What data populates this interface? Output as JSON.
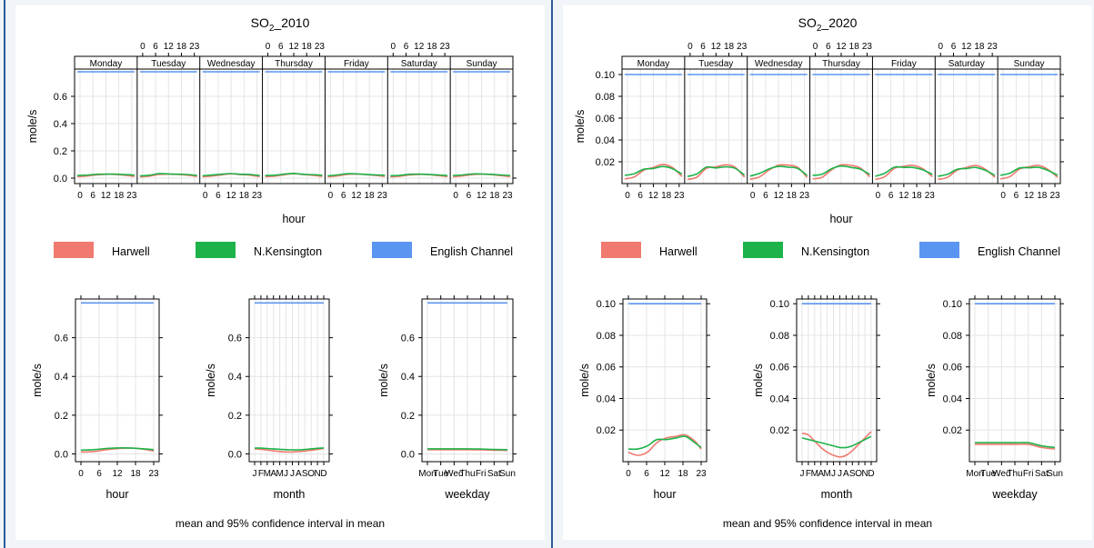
{
  "colors": {
    "Harwell": "#f07a70",
    "N.Kensington": "#1eb34a",
    "English Channel": "#5b95f2",
    "grid": "#e4e4e4",
    "divider": "#2a5c9a",
    "background": "#f1f4f8"
  },
  "legend": [
    "Harwell",
    "N.Kensington",
    "English Channel"
  ],
  "footer_text": "mean and 95% confidence interval in mean",
  "weekday_strip_labels": [
    "Monday",
    "Tuesday",
    "Wednesday",
    "Thursday",
    "Friday",
    "Saturday",
    "Sunday"
  ],
  "hour_tick_labels": [
    "0",
    "6",
    "12",
    "18",
    "23"
  ],
  "month_tick_labels": [
    "J",
    "F",
    "M",
    "A",
    "M",
    "J",
    "J",
    "A",
    "S",
    "O",
    "N",
    "D"
  ],
  "weekday_tick_labels": [
    "Mon",
    "Tue",
    "Wed",
    "Thu",
    "Fri",
    "Sat",
    "Sun"
  ],
  "chart_data": [
    {
      "id": "so2_2010",
      "title_base": "SO",
      "title_sub": "2",
      "title_rest": "_2010",
      "ylabel": "mole/s",
      "ylim": [
        -0.04,
        0.8
      ],
      "yticks": [
        "0.0",
        "0.2",
        "0.4",
        "0.6"
      ],
      "bottom_yticks": [
        "0.0",
        "0.2",
        "0.4",
        "0.6"
      ],
      "grid": true,
      "weekly_series": [
        {
          "name": "Harwell",
          "pattern": [
            0.01,
            0.015,
            0.025,
            0.03,
            0.028,
            0.02,
            0.012
          ]
        },
        {
          "name": "N.Kensington",
          "pattern": [
            0.018,
            0.022,
            0.03,
            0.032,
            0.03,
            0.025,
            0.02
          ]
        },
        {
          "name": "English Channel",
          "pattern": [
            0.78,
            0.78,
            0.78,
            0.78,
            0.78,
            0.78,
            0.78
          ]
        }
      ],
      "hour": {
        "xlabel": "hour",
        "x": [
          0,
          4,
          8,
          12,
          16,
          20,
          23
        ],
        "series": [
          {
            "name": "Harwell",
            "values": [
              0.01,
              0.012,
              0.022,
              0.028,
              0.03,
              0.024,
              0.015
            ]
          },
          {
            "name": "N.Kensington",
            "values": [
              0.02,
              0.022,
              0.028,
              0.031,
              0.03,
              0.026,
              0.022
            ]
          },
          {
            "name": "English Channel",
            "values": [
              0.78,
              0.78,
              0.78,
              0.78,
              0.78,
              0.78,
              0.78
            ]
          }
        ]
      },
      "month": {
        "xlabel": "month",
        "x": [
          1,
          2,
          3,
          4,
          5,
          6,
          7,
          8,
          9,
          10,
          11,
          12
        ],
        "series": [
          {
            "name": "Harwell",
            "values": [
              0.026,
              0.024,
              0.02,
              0.016,
              0.012,
              0.01,
              0.01,
              0.012,
              0.015,
              0.019,
              0.024,
              0.028
            ]
          },
          {
            "name": "N.Kensington",
            "values": [
              0.03,
              0.03,
              0.028,
              0.026,
              0.024,
              0.022,
              0.021,
              0.021,
              0.023,
              0.026,
              0.029,
              0.031
            ]
          },
          {
            "name": "English Channel",
            "values": [
              0.78,
              0.78,
              0.78,
              0.78,
              0.78,
              0.78,
              0.78,
              0.78,
              0.78,
              0.78,
              0.78,
              0.78
            ]
          }
        ]
      },
      "weekday": {
        "xlabel": "weekday",
        "x": [
          1,
          2,
          3,
          4,
          5,
          6,
          7
        ],
        "series": [
          {
            "name": "Harwell",
            "values": [
              0.022,
              0.022,
              0.022,
              0.022,
              0.021,
              0.019,
              0.018
            ]
          },
          {
            "name": "N.Kensington",
            "values": [
              0.026,
              0.026,
              0.026,
              0.026,
              0.025,
              0.023,
              0.022
            ]
          },
          {
            "name": "English Channel",
            "values": [
              0.78,
              0.78,
              0.78,
              0.78,
              0.78,
              0.78,
              0.78
            ]
          }
        ]
      }
    },
    {
      "id": "so2_2020",
      "title_base": "SO",
      "title_sub": "2",
      "title_rest": "_2020",
      "ylabel": "mole/s",
      "ylim": [
        0.0,
        0.105
      ],
      "yticks": [
        "0.02",
        "0.04",
        "0.06",
        "0.08",
        "0.10"
      ],
      "bottom_yticks": [
        "0.02",
        "0.04",
        "0.06",
        "0.08",
        "0.10"
      ],
      "bottom_ylim": [
        0.0,
        0.103
      ],
      "grid": true,
      "weekly_series": [
        {
          "name": "Harwell",
          "pattern": [
            0.004,
            0.006,
            0.013,
            0.016,
            0.018,
            0.014,
            0.006
          ]
        },
        {
          "name": "N.Kensington",
          "pattern": [
            0.007,
            0.009,
            0.014,
            0.015,
            0.016,
            0.013,
            0.008
          ]
        },
        {
          "name": "English Channel",
          "pattern": [
            0.1,
            0.1,
            0.1,
            0.1,
            0.1,
            0.1,
            0.1
          ]
        }
      ],
      "hour": {
        "xlabel": "hour",
        "x": [
          0,
          3,
          6,
          9,
          12,
          15,
          18,
          21,
          23
        ],
        "series": [
          {
            "name": "Harwell",
            "values": [
              0.006,
              0.004,
              0.006,
              0.012,
              0.015,
              0.016,
              0.017,
              0.013,
              0.008
            ]
          },
          {
            "name": "N.Kensington",
            "values": [
              0.008,
              0.008,
              0.01,
              0.014,
              0.014,
              0.015,
              0.016,
              0.012,
              0.009
            ]
          },
          {
            "name": "English Channel",
            "values": [
              0.1,
              0.1,
              0.1,
              0.1,
              0.1,
              0.1,
              0.1,
              0.1,
              0.1
            ]
          }
        ]
      },
      "month": {
        "xlabel": "month",
        "x": [
          1,
          2,
          3,
          4,
          5,
          6,
          7,
          8,
          9,
          10,
          11,
          12
        ],
        "series": [
          {
            "name": "Harwell",
            "values": [
              0.018,
              0.017,
              0.013,
              0.009,
              0.006,
              0.004,
              0.003,
              0.004,
              0.007,
              0.011,
              0.015,
              0.019
            ]
          },
          {
            "name": "N.Kensington",
            "values": [
              0.015,
              0.014,
              0.013,
              0.012,
              0.011,
              0.01,
              0.009,
              0.009,
              0.01,
              0.012,
              0.014,
              0.016
            ]
          },
          {
            "name": "English Channel",
            "values": [
              0.1,
              0.1,
              0.1,
              0.1,
              0.1,
              0.1,
              0.1,
              0.1,
              0.1,
              0.1,
              0.1,
              0.1
            ]
          }
        ]
      },
      "weekday": {
        "xlabel": "weekday",
        "x": [
          1,
          2,
          3,
          4,
          5,
          6,
          7
        ],
        "series": [
          {
            "name": "Harwell",
            "values": [
              0.011,
              0.011,
              0.011,
              0.011,
              0.011,
              0.009,
              0.008
            ]
          },
          {
            "name": "N.Kensington",
            "values": [
              0.012,
              0.012,
              0.012,
              0.012,
              0.012,
              0.01,
              0.009
            ]
          },
          {
            "name": "English Channel",
            "values": [
              0.1,
              0.1,
              0.1,
              0.1,
              0.1,
              0.1,
              0.1
            ]
          }
        ]
      }
    }
  ]
}
